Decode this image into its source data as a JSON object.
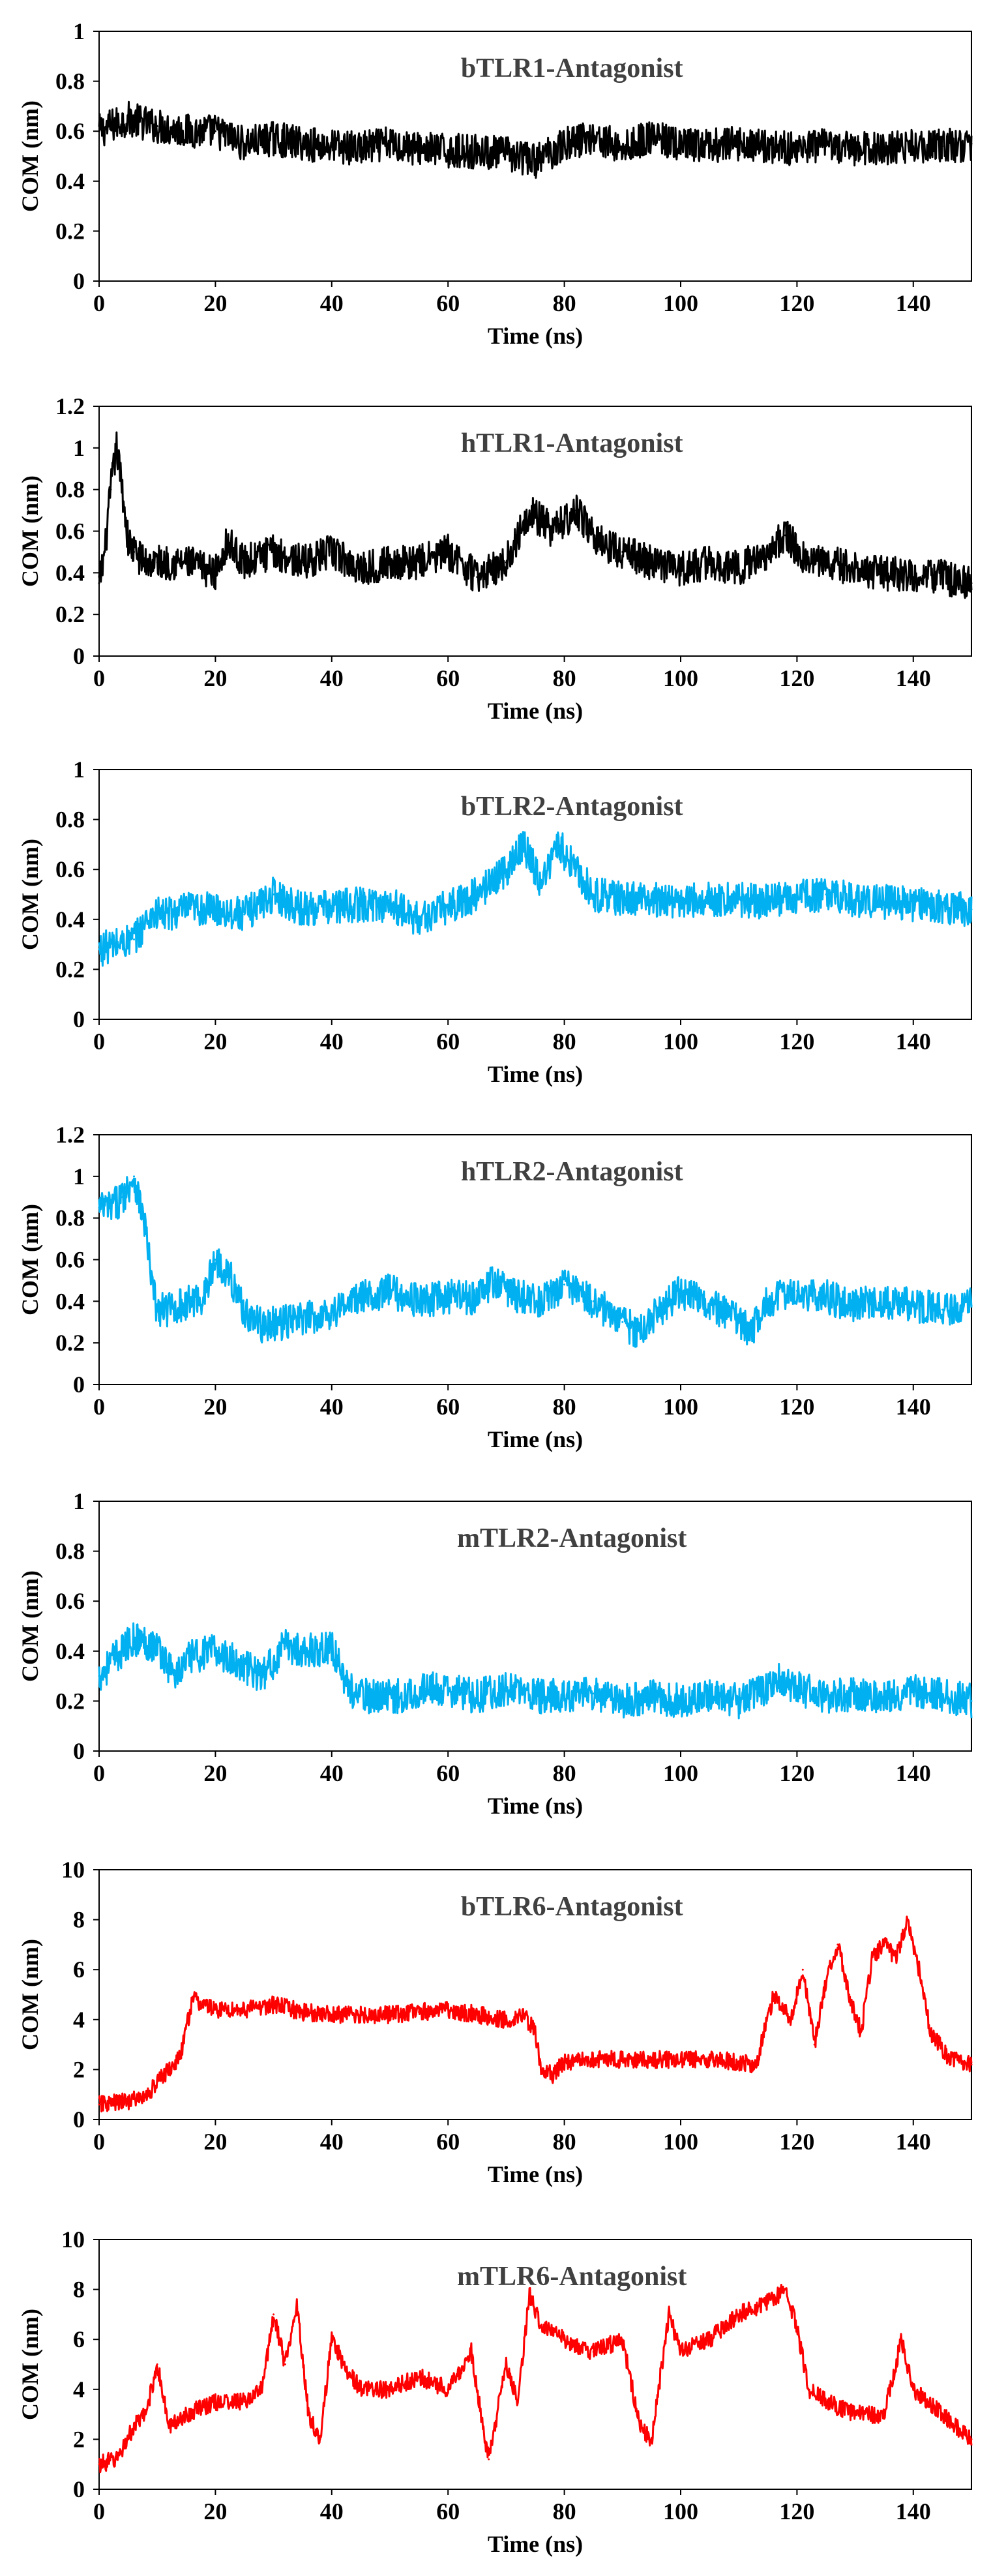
{
  "chart_data": [
    {
      "type": "line",
      "title": "bTLR1-Antagonist",
      "xlabel": "Time (ns)",
      "ylabel": "COM (nm)",
      "xlim": [
        0,
        150
      ],
      "ylim": [
        0,
        1
      ],
      "xticks": [
        0,
        20,
        40,
        60,
        80,
        100,
        120,
        140
      ],
      "yticks": [
        0,
        0.2,
        0.4,
        0.6,
        0.8,
        1
      ],
      "ytick_labels": [
        "0",
        "0.2",
        "0.4",
        "0.6",
        "0.8",
        "1"
      ],
      "series": [
        {
          "name": "bTLR1-Antagonist",
          "color": "#000000",
          "x": [
            0,
            5,
            10,
            15,
            20,
            25,
            30,
            35,
            40,
            45,
            50,
            55,
            60,
            65,
            70,
            75,
            80,
            85,
            90,
            95,
            100,
            105,
            110,
            115,
            120,
            125,
            130,
            135,
            140,
            145,
            150
          ],
          "y": [
            0.6,
            0.65,
            0.62,
            0.6,
            0.6,
            0.55,
            0.57,
            0.55,
            0.54,
            0.53,
            0.55,
            0.53,
            0.52,
            0.52,
            0.51,
            0.48,
            0.55,
            0.58,
            0.53,
            0.58,
            0.54,
            0.54,
            0.55,
            0.54,
            0.53,
            0.54,
            0.53,
            0.53,
            0.54,
            0.54,
            0.55
          ]
        }
      ]
    },
    {
      "type": "line",
      "title": "hTLR1-Antagonist",
      "xlabel": "Time (ns)",
      "ylabel": "COM (nm)",
      "xlim": [
        0,
        150
      ],
      "ylim": [
        0,
        1.2
      ],
      "xticks": [
        0,
        20,
        40,
        60,
        80,
        100,
        120,
        140
      ],
      "yticks": [
        0,
        0.2,
        0.4,
        0.6,
        0.8,
        1,
        1.2
      ],
      "ytick_labels": [
        "0",
        "0.2",
        "0.4",
        "0.6",
        "0.8",
        "1",
        "1.2"
      ],
      "series": [
        {
          "name": "hTLR1-Antagonist",
          "color": "#000000",
          "x": [
            0,
            1,
            2,
            3,
            4,
            5,
            6,
            8,
            10,
            15,
            20,
            22,
            25,
            30,
            35,
            40,
            45,
            50,
            55,
            60,
            65,
            70,
            74,
            78,
            82,
            86,
            90,
            95,
            100,
            105,
            110,
            115,
            118,
            122,
            125,
            130,
            135,
            140,
            145,
            150
          ],
          "y": [
            0.35,
            0.5,
            0.8,
            1.0,
            0.8,
            0.55,
            0.5,
            0.45,
            0.45,
            0.45,
            0.4,
            0.55,
            0.45,
            0.5,
            0.45,
            0.5,
            0.42,
            0.45,
            0.45,
            0.5,
            0.38,
            0.45,
            0.7,
            0.6,
            0.7,
            0.55,
            0.5,
            0.45,
            0.42,
            0.45,
            0.42,
            0.5,
            0.58,
            0.45,
            0.45,
            0.42,
            0.4,
            0.38,
            0.38,
            0.35
          ]
        }
      ]
    },
    {
      "type": "line",
      "title": "bTLR2-Antagonist",
      "xlabel": "Time (ns)",
      "ylabel": "COM (nm)",
      "xlim": [
        0,
        150
      ],
      "ylim": [
        0,
        1
      ],
      "xticks": [
        0,
        20,
        40,
        60,
        80,
        100,
        120,
        140
      ],
      "yticks": [
        0,
        0.2,
        0.4,
        0.6,
        0.8,
        1
      ],
      "ytick_labels": [
        "0",
        "0.2",
        "0.4",
        "0.6",
        "0.8",
        "1"
      ],
      "series": [
        {
          "name": "bTLR2-Antagonist",
          "color": "#00B0F0",
          "x": [
            0,
            3,
            6,
            9,
            12,
            15,
            20,
            25,
            30,
            35,
            40,
            45,
            50,
            55,
            60,
            65,
            70,
            73,
            76,
            79,
            82,
            85,
            90,
            95,
            100,
            105,
            110,
            115,
            120,
            125,
            130,
            135,
            140,
            145,
            150
          ],
          "y": [
            0.28,
            0.3,
            0.32,
            0.42,
            0.42,
            0.44,
            0.44,
            0.42,
            0.5,
            0.44,
            0.45,
            0.46,
            0.46,
            0.4,
            0.45,
            0.5,
            0.6,
            0.7,
            0.55,
            0.7,
            0.6,
            0.5,
            0.48,
            0.48,
            0.47,
            0.48,
            0.48,
            0.47,
            0.49,
            0.5,
            0.48,
            0.47,
            0.46,
            0.45,
            0.44
          ]
        }
      ]
    },
    {
      "type": "line",
      "title": "hTLR2-Antagonist",
      "xlabel": "Time (ns)",
      "ylabel": "COM (nm)",
      "xlim": [
        0,
        150
      ],
      "ylim": [
        0,
        1.2
      ],
      "xticks": [
        0,
        20,
        40,
        60,
        80,
        100,
        120,
        140
      ],
      "yticks": [
        0,
        0.2,
        0.4,
        0.6,
        0.8,
        1,
        1.2
      ],
      "ytick_labels": [
        "0",
        "0.2",
        "0.4",
        "0.6",
        "0.8",
        "1",
        "1.2"
      ],
      "series": [
        {
          "name": "hTLR2-Antagonist",
          "color": "#00B0F0",
          "x": [
            0,
            2,
            4,
            6,
            8,
            9,
            10,
            14,
            18,
            20,
            22,
            25,
            28,
            32,
            36,
            40,
            45,
            50,
            55,
            60,
            65,
            68,
            72,
            76,
            80,
            85,
            90,
            93,
            96,
            100,
            105,
            110,
            112,
            115,
            120,
            125,
            130,
            135,
            140,
            145,
            150
          ],
          "y": [
            0.85,
            0.85,
            0.9,
            1.0,
            0.75,
            0.5,
            0.35,
            0.38,
            0.42,
            0.6,
            0.55,
            0.35,
            0.28,
            0.3,
            0.32,
            0.35,
            0.42,
            0.45,
            0.4,
            0.42,
            0.42,
            0.5,
            0.42,
            0.4,
            0.48,
            0.4,
            0.3,
            0.25,
            0.35,
            0.45,
            0.38,
            0.3,
            0.25,
            0.4,
            0.45,
            0.42,
            0.38,
            0.4,
            0.38,
            0.36,
            0.38
          ]
        }
      ]
    },
    {
      "type": "line",
      "title": "mTLR2-Antagonist",
      "xlabel": "Time (ns)",
      "ylabel": "COM (nm)",
      "xlim": [
        0,
        150
      ],
      "ylim": [
        0,
        1
      ],
      "xticks": [
        0,
        20,
        40,
        60,
        80,
        100,
        120,
        140
      ],
      "yticks": [
        0,
        0.2,
        0.4,
        0.6,
        0.8,
        1
      ],
      "ytick_labels": [
        "0",
        "0.2",
        "0.4",
        "0.6",
        "0.8",
        "1"
      ],
      "series": [
        {
          "name": "mTLR2-Antagonist",
          "color": "#00B0F0",
          "x": [
            0,
            3,
            6,
            10,
            13,
            16,
            20,
            24,
            28,
            32,
            36,
            40,
            42,
            44,
            48,
            52,
            56,
            60,
            65,
            70,
            75,
            80,
            85,
            90,
            95,
            100,
            105,
            110,
            115,
            117,
            120,
            125,
            130,
            135,
            140,
            145,
            150
          ],
          "y": [
            0.3,
            0.38,
            0.45,
            0.42,
            0.3,
            0.38,
            0.4,
            0.35,
            0.3,
            0.42,
            0.4,
            0.42,
            0.3,
            0.22,
            0.22,
            0.22,
            0.25,
            0.24,
            0.22,
            0.25,
            0.22,
            0.22,
            0.23,
            0.2,
            0.22,
            0.2,
            0.22,
            0.2,
            0.25,
            0.3,
            0.25,
            0.22,
            0.23,
            0.22,
            0.24,
            0.22,
            0.2
          ]
        }
      ]
    },
    {
      "type": "line",
      "title": "bTLR6-Antagonist",
      "xlabel": "Time (ns)",
      "ylabel": "COM (nm)",
      "xlim": [
        0,
        150
      ],
      "ylim": [
        0,
        10
      ],
      "xticks": [
        0,
        20,
        40,
        60,
        80,
        100,
        120,
        140
      ],
      "yticks": [
        0,
        2,
        4,
        6,
        8,
        10
      ],
      "ytick_labels": [
        "0",
        "2",
        "4",
        "6",
        "8",
        "10"
      ],
      "series": [
        {
          "name": "bTLR6-Antagonist",
          "color": "#FF0000",
          "x": [
            0,
            4,
            8,
            10,
            12,
            14,
            16,
            18,
            20,
            25,
            30,
            35,
            40,
            45,
            50,
            55,
            60,
            65,
            70,
            73,
            75,
            76,
            78,
            80,
            85,
            90,
            95,
            100,
            105,
            110,
            113,
            116,
            119,
            121,
            123,
            125,
            127,
            129,
            131,
            133,
            135,
            137,
            139,
            141,
            143,
            146,
            150
          ],
          "y": [
            0.6,
            0.7,
            0.9,
            1.5,
            2.0,
            2.5,
            4.8,
            4.6,
            4.4,
            4.4,
            4.6,
            4.3,
            4.2,
            4.2,
            4.2,
            4.3,
            4.4,
            4.2,
            4.0,
            4.2,
            3.5,
            2.0,
            1.8,
            2.3,
            2.4,
            2.4,
            2.4,
            2.4,
            2.4,
            2.3,
            2.2,
            5.0,
            4.0,
            6.0,
            3.0,
            5.5,
            7.0,
            5.0,
            3.5,
            6.5,
            7.0,
            6.5,
            8.0,
            6.0,
            3.5,
            2.5,
            2.2
          ]
        }
      ]
    },
    {
      "type": "line",
      "title": "mTLR6-Antagonist",
      "xlabel": "Time (ns)",
      "ylabel": "COM (nm)",
      "xlim": [
        0,
        150
      ],
      "ylim": [
        0,
        10
      ],
      "xticks": [
        0,
        20,
        40,
        60,
        80,
        100,
        120,
        140
      ],
      "yticks": [
        0,
        2,
        4,
        6,
        8,
        10
      ],
      "ytick_labels": [
        "0",
        "2",
        "4",
        "6",
        "8",
        "10"
      ],
      "series": [
        {
          "name": "mTLR6-Antagonist",
          "color": "#FF0000",
          "x": [
            0,
            3,
            6,
            8,
            10,
            12,
            15,
            20,
            25,
            28,
            30,
            32,
            34,
            36,
            38,
            40,
            42,
            45,
            50,
            55,
            60,
            64,
            66,
            67,
            70,
            72,
            74,
            76,
            80,
            85,
            90,
            93,
            95,
            98,
            100,
            105,
            110,
            115,
            118,
            120,
            122,
            125,
            130,
            135,
            138,
            140,
            145,
            150
          ],
          "y": [
            1.0,
            1.2,
            2.5,
            3.0,
            5.0,
            2.5,
            3.0,
            3.5,
            3.5,
            4.0,
            7.0,
            5.0,
            7.5,
            3.0,
            2.0,
            6.0,
            5.0,
            4.0,
            4.0,
            4.5,
            4.0,
            5.5,
            2.5,
            1.2,
            5.0,
            3.5,
            7.8,
            6.5,
            6.0,
            5.5,
            6.0,
            2.5,
            2.0,
            7.0,
            5.5,
            6.0,
            7.0,
            7.5,
            8.0,
            6.5,
            4.0,
            3.5,
            3.0,
            3.0,
            6.0,
            4.0,
            3.0,
            2.0
          ]
        }
      ]
    }
  ]
}
